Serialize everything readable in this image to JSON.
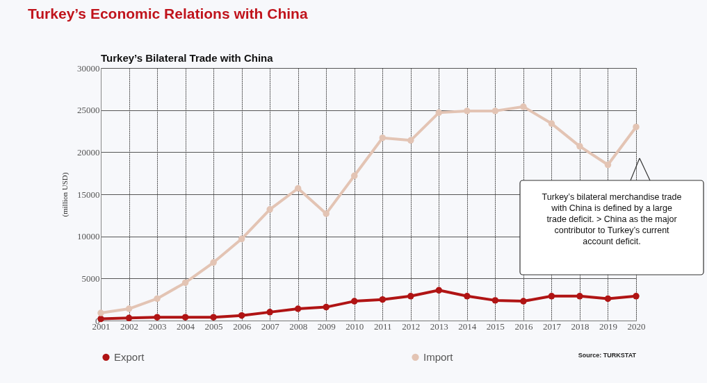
{
  "chart_data": {
    "type": "line",
    "title": "Turkey’s Economic Relations with China",
    "subtitle": "Turkey’s Bilateral Trade with China",
    "ylabel": "(million USD)",
    "categories": [
      "2001",
      "2002",
      "2003",
      "2004",
      "2005",
      "2006",
      "2007",
      "2008",
      "2009",
      "2010",
      "2011",
      "2012",
      "2013",
      "2014",
      "2015",
      "2016",
      "2017",
      "2018",
      "2019",
      "2020"
    ],
    "series": [
      {
        "name": "Export",
        "color": "#b01414",
        "values": [
          200,
          300,
          400,
          400,
          400,
          600,
          1000,
          1400,
          1600,
          2300,
          2500,
          2900,
          3600,
          2900,
          2400,
          2300,
          2900,
          2900,
          2600,
          2900
        ]
      },
      {
        "name": "Import",
        "color": "#e3c4b4",
        "values": [
          900,
          1400,
          2600,
          4500,
          6900,
          9700,
          13200,
          15700,
          12700,
          17200,
          21700,
          21400,
          24700,
          24900,
          24900,
          25400,
          23400,
          20700,
          18500,
          23000
        ]
      }
    ],
    "ylim": [
      0,
      30000
    ],
    "yticks": [
      0,
      5000,
      10000,
      15000,
      20000,
      25000,
      30000
    ],
    "grid": true,
    "legend": "bottom",
    "marker": "circle",
    "line_style": "solid",
    "annotations": [
      "Turkey’s bilateral merchandise trade with China is defined by a large trade deficit. > China as the major contributor to Turkey’s current account deficit.",
      "Source: TURKSTAT"
    ]
  }
}
